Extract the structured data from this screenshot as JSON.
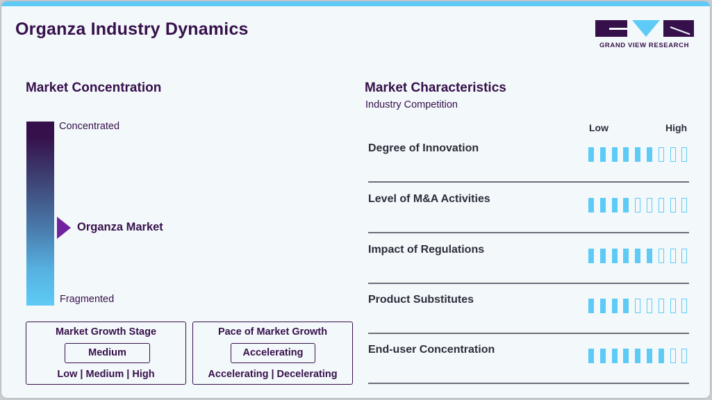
{
  "header": {
    "title": "Organza Industry Dynamics",
    "logo_text": "GRAND VIEW RESEARCH"
  },
  "colors": {
    "primary": "#36104a",
    "accent": "#5ecbf6",
    "pointer": "#7022a0",
    "background": "#f3f8fb"
  },
  "concentration": {
    "title": "Market Concentration",
    "top_label": "Concentrated",
    "bottom_label": "Fragmented",
    "marker_label": "Organza Market"
  },
  "growth_stage": {
    "title": "Market Growth Stage",
    "value": "Medium",
    "options": "Low | Medium | High"
  },
  "growth_pace": {
    "title": "Pace of Market Growth",
    "value": "Accelerating",
    "options": "Accelerating | Decelerating"
  },
  "characteristics": {
    "title": "Market Characteristics",
    "subtitle": "Industry Competition",
    "scale_low": "Low",
    "scale_high": "High",
    "max_segments": 9,
    "rows": [
      {
        "label": "Degree of Innovation",
        "filled": 6
      },
      {
        "label": "Level of M&A Activities",
        "filled": 4
      },
      {
        "label": "Impact of Regulations",
        "filled": 6
      },
      {
        "label": "Product Substitutes",
        "filled": 4
      },
      {
        "label": "End-user Concentration",
        "filled": 7
      }
    ]
  }
}
